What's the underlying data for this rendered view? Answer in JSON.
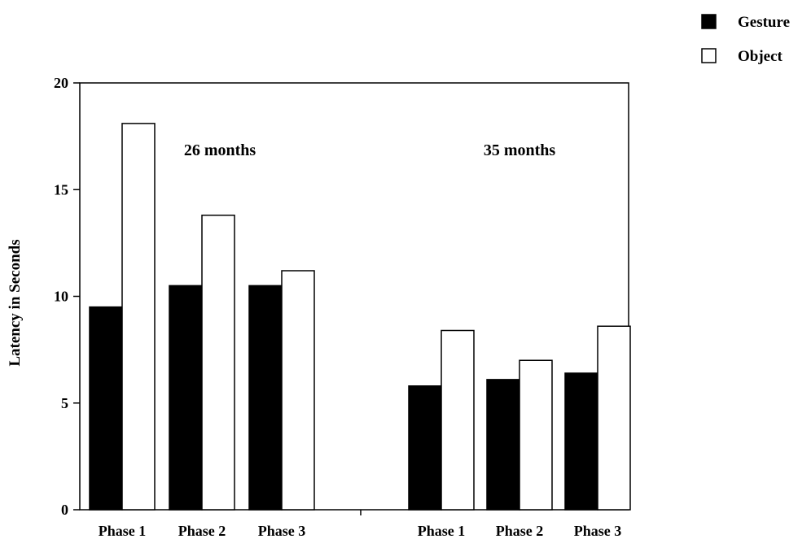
{
  "chart_data": {
    "type": "bar",
    "ylabel": "Latency in Seconds",
    "ylim": [
      0,
      20
    ],
    "yticks": [
      "0",
      "5",
      "10",
      "15",
      "20"
    ],
    "grid": false,
    "legend_position": "top-right",
    "groups": [
      {
        "label": "26 months",
        "categories": [
          "Phase 1",
          "Phase 2",
          "Phase 3"
        ],
        "series": [
          {
            "name": "Gesture",
            "values": [
              9.5,
              10.5,
              10.5
            ]
          },
          {
            "name": "Object",
            "values": [
              18.1,
              13.8,
              11.2
            ]
          }
        ]
      },
      {
        "label": "35 months",
        "categories": [
          "Phase 1",
          "Phase 2",
          "Phase 3"
        ],
        "series": [
          {
            "name": "Gesture",
            "values": [
              5.8,
              6.1,
              6.4
            ]
          },
          {
            "name": "Object",
            "values": [
              8.4,
              7.0,
              8.6
            ]
          }
        ]
      }
    ],
    "legend": [
      {
        "name": "Gesture",
        "color": "#000000"
      },
      {
        "name": "Object",
        "color": "#ffffff"
      }
    ]
  }
}
